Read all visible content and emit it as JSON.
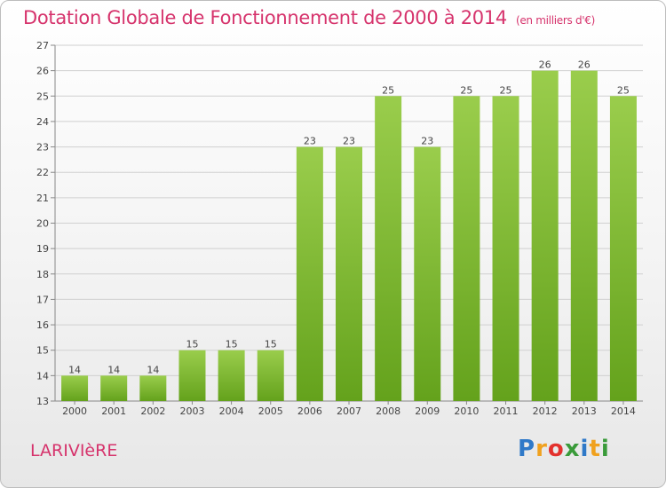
{
  "header": {
    "title": "Dotation Globale de Fonctionnement de 2000 à 2014",
    "subtitle": "(en milliers d'€)"
  },
  "footer": {
    "commune": "LARIVIèRE",
    "logo_letters": [
      "P",
      "r",
      "o",
      "x",
      "i",
      "t",
      "i"
    ]
  },
  "colors": {
    "title": "#d6336c",
    "bar_top": "#9acd4c",
    "bar_bottom": "#64a21c",
    "grid": "#d0d0d0"
  },
  "chart_data": {
    "type": "bar",
    "title": "Dotation Globale de Fonctionnement de 2000 à 2014",
    "subtitle": "(en milliers d'€)",
    "xlabel": "",
    "ylabel": "",
    "categories": [
      "2000",
      "2001",
      "2002",
      "2003",
      "2004",
      "2005",
      "2006",
      "2007",
      "2008",
      "2009",
      "2010",
      "2011",
      "2012",
      "2013",
      "2014"
    ],
    "values": [
      14,
      14,
      14,
      15,
      15,
      15,
      23,
      23,
      25,
      23,
      25,
      25,
      26,
      26,
      25
    ],
    "ylim": [
      13,
      27
    ],
    "yticks": [
      13,
      14,
      15,
      16,
      17,
      18,
      19,
      20,
      21,
      22,
      23,
      24,
      25,
      26,
      27
    ],
    "grid": true,
    "legend": "none"
  }
}
